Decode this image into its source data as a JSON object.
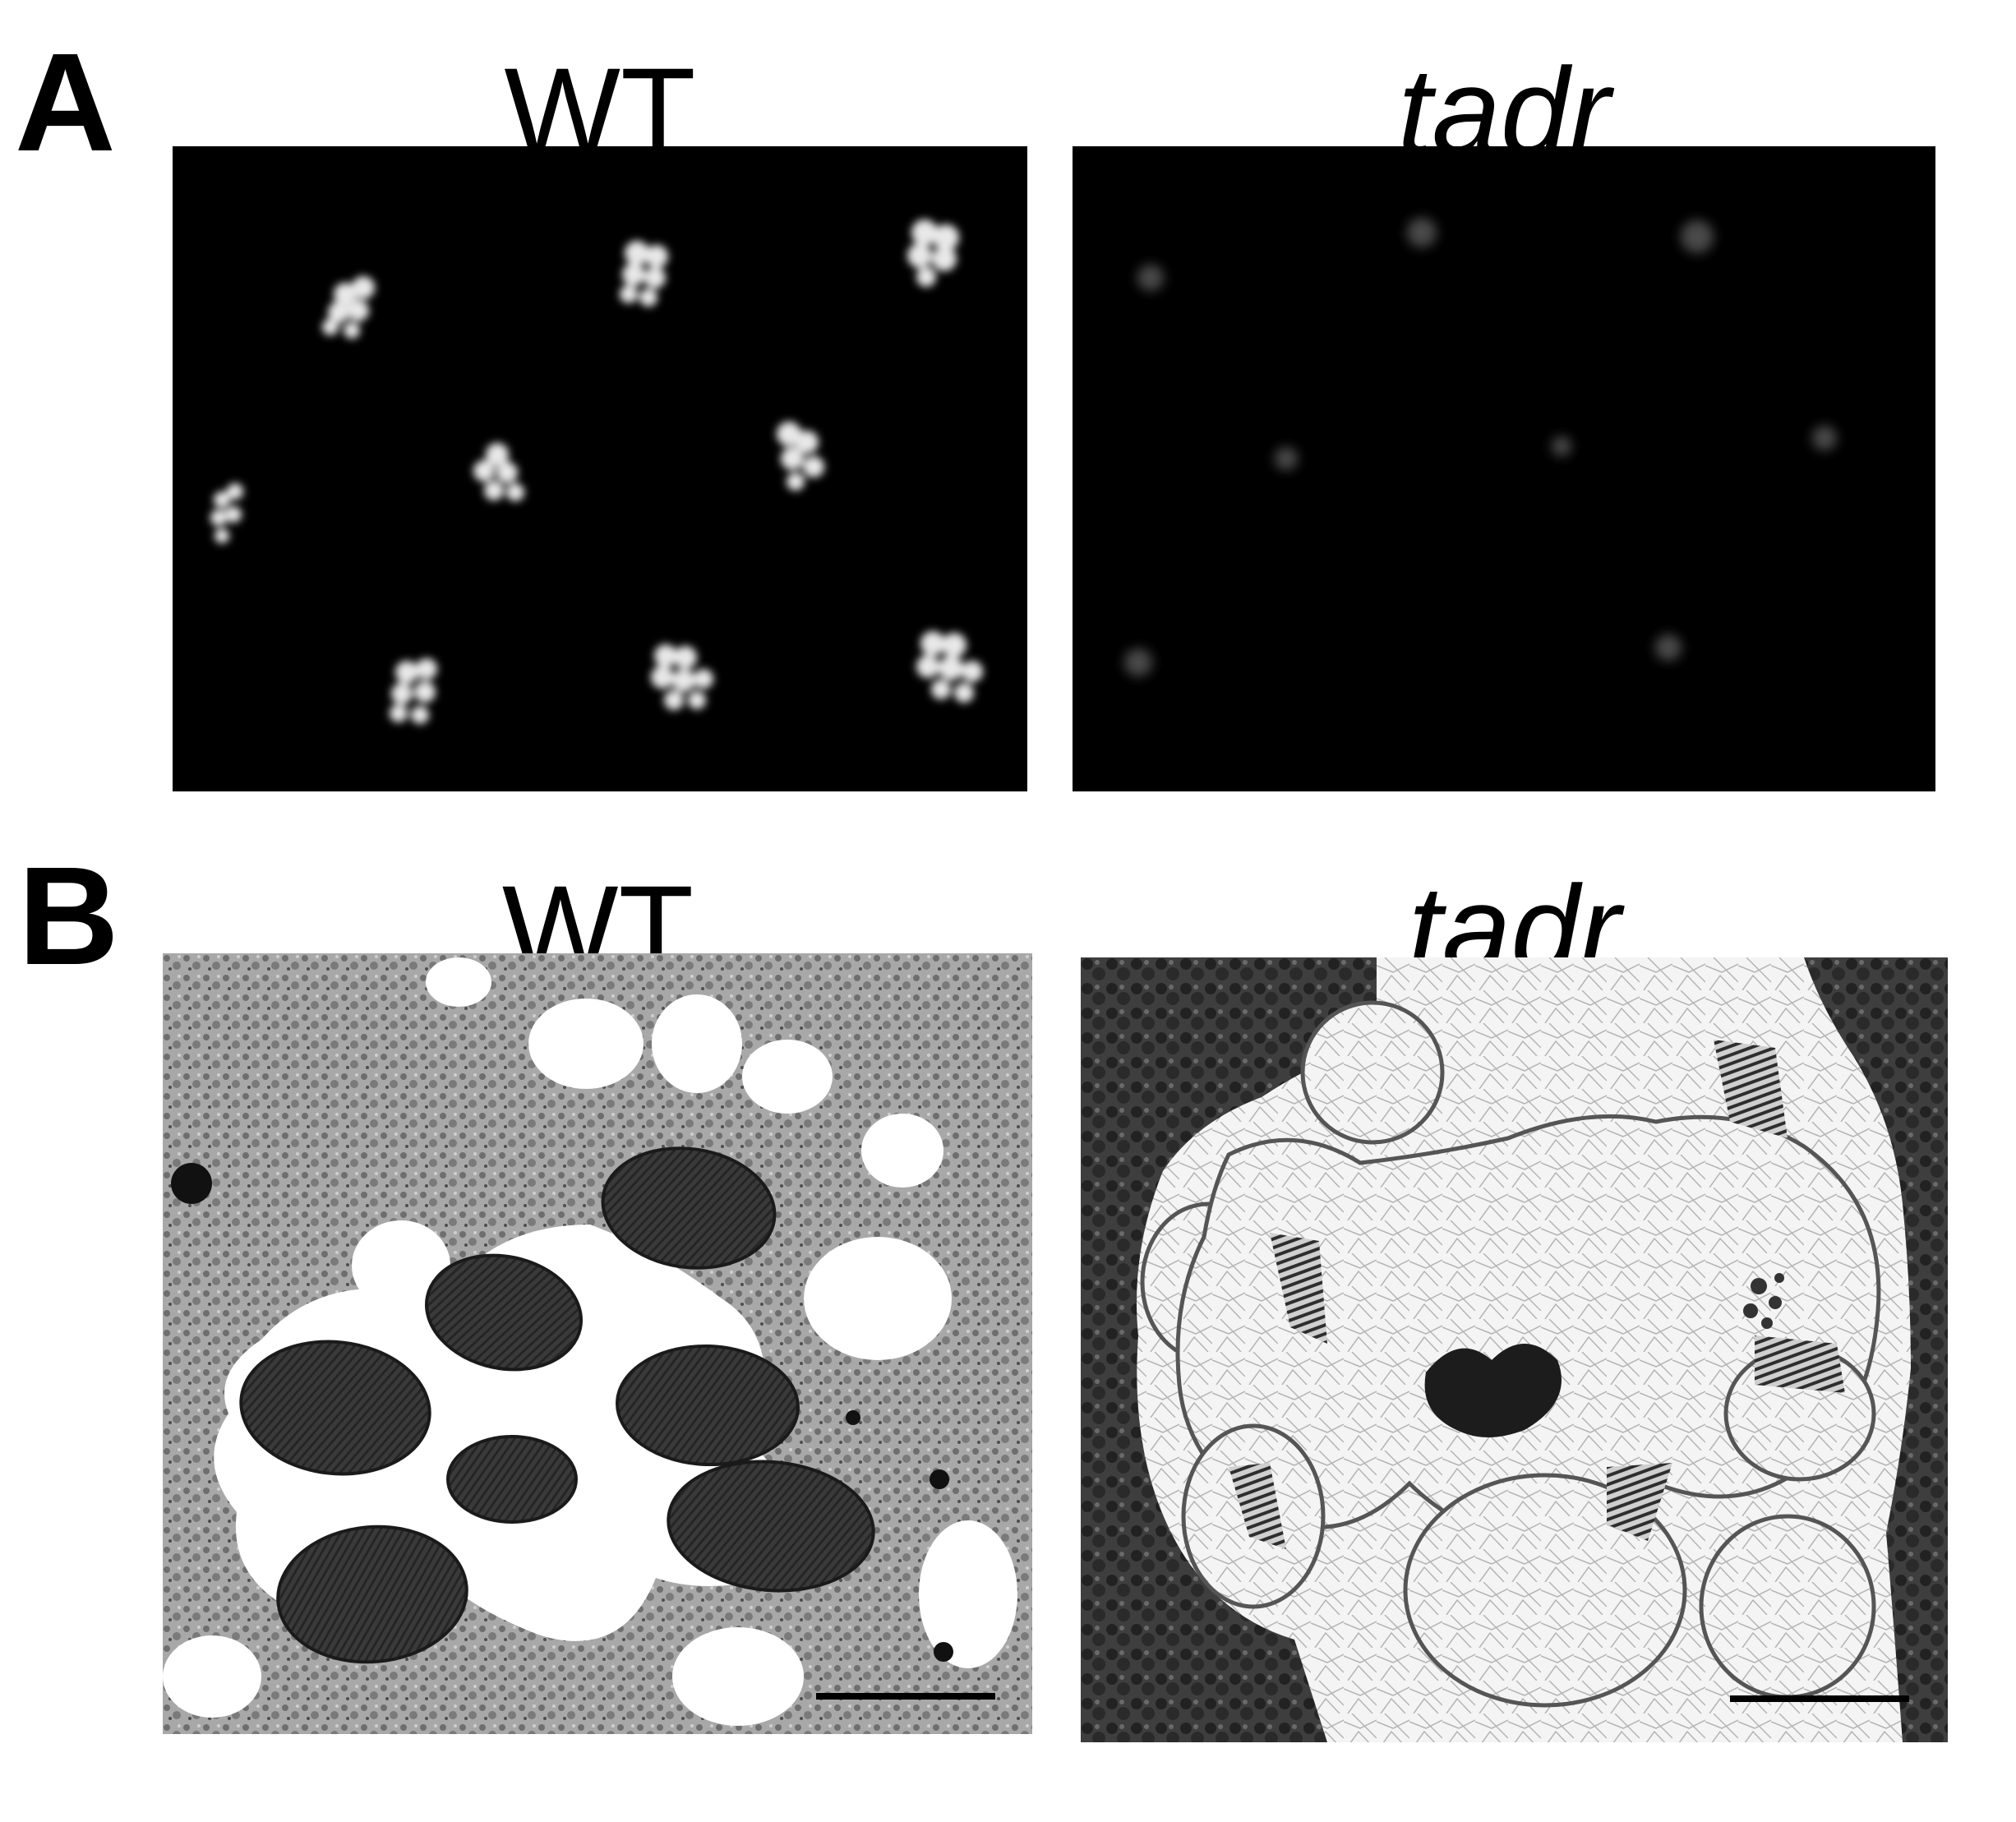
{
  "panels": [
    {
      "letter": "A",
      "columns": [
        {
          "title": "WT",
          "italic": false
        },
        {
          "title": "tadr",
          "italic": true
        }
      ]
    },
    {
      "letter": "B",
      "columns": [
        {
          "title": "WT",
          "italic": false
        },
        {
          "title": "tadr",
          "italic": true
        }
      ]
    }
  ]
}
